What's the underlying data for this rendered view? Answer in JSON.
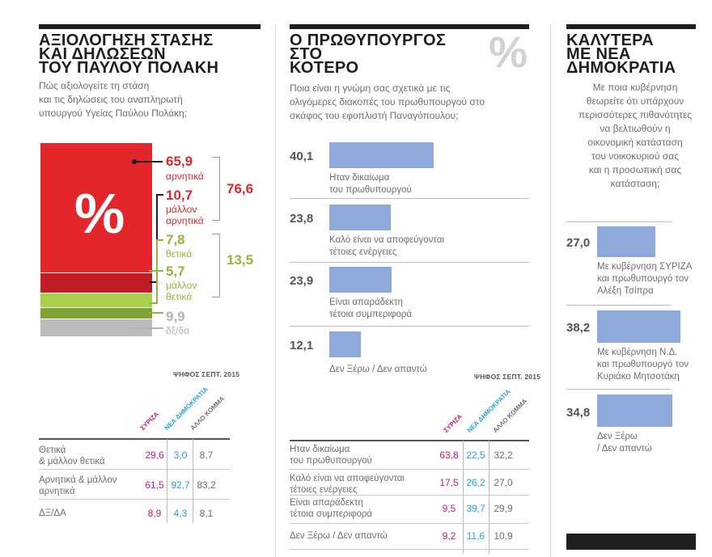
{
  "panel1": {
    "title": "ΑΞΙΟΛΟΓΗΣΗ ΣΤΑΣΗΣ\nΚΑΙ ΔΗΛΩΣΕΩΝ\nΤΟΥ ΠΑΥΛΟΥ ΠΟΛΑΚΗ",
    "subtitle": "Πώς αξιολογείτε τη στάση\nκαι τις δηλώσεις του αναπληρωτή\nυπουργού Υγείας Παύλου Πολάκη;",
    "percent_symbol": "%",
    "segments": [
      {
        "value": "65,9",
        "label": "αρνητικά",
        "color": "#e3262b"
      },
      {
        "value": "10,7",
        "label": "μάλλον\nαρνητικά",
        "color": "#c01e24"
      },
      {
        "value": "7,8",
        "label": "θετικά",
        "color": "#a9cf4d"
      },
      {
        "value": "5,7",
        "label": "μάλλον\nθετικά",
        "color": "#7fa436"
      },
      {
        "value": "9,9",
        "label": "δξ/δα",
        "color": "#bcbcbc"
      }
    ],
    "total_negative": "76,6",
    "total_positive": "13,5",
    "vote_label": "ΨΗΦΟΣ ΣΕΠΤ. 2015",
    "col_headers": [
      "ΣΥΡΙΖΑ",
      "ΝΕΑ ΔΗΜΟΚΡΑΤΙΑ",
      "ΑΛΛΟ ΚΟΜΜΑ"
    ],
    "rows": [
      {
        "label": "Θετικά\n& μάλλον θετικά",
        "v": [
          "29,6",
          "3,0",
          "8,7"
        ]
      },
      {
        "label": "Αρνητικά & μάλλον\nαρνητικά",
        "v": [
          "61,5",
          "92,7",
          "83,2"
        ]
      },
      {
        "label": "ΔΞ/ΔΑ",
        "v": [
          "8,9",
          "4,3",
          "8,1"
        ]
      }
    ]
  },
  "panel2": {
    "title": "Ο ΠΡΩΘΥΠΟΥΡΓΟΣ\nΣΤΟ\nΚΟΤΕΡΟ",
    "percent_symbol": "%",
    "subtitle": "Ποια είναι η γνώμη σας σχετικά με τις\nολιγόμερες διακοπές του πρωθυπουργού στο\nσκάφος του εφοπλιστή Παναγόπουλου;",
    "bars": [
      {
        "value": "40,1",
        "label": "Ηταν δικαίωμα\nτου πρωθυπουργού"
      },
      {
        "value": "23,8",
        "label": "Καλό είναι να αποφεύγονται\nτέτοιες ενέργειες"
      },
      {
        "value": "23,9",
        "label": "Είναι απαράδεκτη\nτέτοια συμπεριφορά"
      },
      {
        "value": "12,1",
        "label": "Δεν Ξέρω / Δεν απαντώ"
      }
    ],
    "vote_label": "ΨΗΦΟΣ ΣΕΠΤ. 2015",
    "col_headers": [
      "ΣΥΡΙΖΑ",
      "ΝΕΑ ΔΗΜΟΚΡΑΤΙΑ",
      "ΑΛΛΟ ΚΟΜΜΑ"
    ],
    "rows": [
      {
        "label": "Ηταν δικαίωμα\nτου πρωθυπουργού",
        "v": [
          "63,8",
          "22,5",
          "32,2"
        ]
      },
      {
        "label": "Καλό είναι να αποφεύγονται\nτέτοιες ενέργειες",
        "v": [
          "17,5",
          "26,2",
          "27,0"
        ]
      },
      {
        "label": "Είναι απαράδεκτη\nτέτοια συμπεριφορά",
        "v": [
          "9,5",
          "39,7",
          "29,9"
        ]
      },
      {
        "label": "Δεν Ξέρω / Δεν απαντώ",
        "v": [
          "9,2",
          "11,6",
          "10,9"
        ]
      }
    ]
  },
  "panel3": {
    "title": "ΚΑΛΥΤΕΡΑ\nΜΕ ΝΕΑ\nΔΗΜΟΚΡΑΤΙΑ",
    "subtitle": "Με ποια κυβέρνηση\nθεωρείτε ότι υπάρχουν\nπερισσότερες πιθανότητες\nνα βελτιωθούν η\nοικονομική κατάσταση\nτου νοικοκυριού σας\nκαι η προσωπική σας\nκατάσταση;",
    "bars": [
      {
        "value": "27,0",
        "label": "Με κυβέρνηση ΣΥΡΙΖΑ\nκαι πρωθυπουργό τον\nΑλέξη Τσίπρα"
      },
      {
        "value": "38,2",
        "label": "Με κυβέρνηση Ν.Δ.\nκαι πρωθυπουργό τον\nΚυριάκο Μητσοτάκη"
      },
      {
        "value": "34,8",
        "label": "Δεν Ξέρω\n/ Δεν απαντώ"
      }
    ]
  },
  "chart_data": [
    {
      "type": "bar",
      "title": "ΑΞΙΟΛΟΓΗΣΗ ΣΤΑΣΗΣ ΚΑΙ ΔΗΛΩΣΕΩΝ ΤΟΥ ΠΑΥΛΟΥ ΠΟΛΑΚΗ",
      "categories": [
        "αρνητικά",
        "μάλλον αρνητικά",
        "θετικά",
        "μάλλον θετικά",
        "δξ/δα"
      ],
      "values": [
        65.9,
        10.7,
        7.8,
        5.7,
        9.9
      ],
      "stacked": true
    },
    {
      "type": "bar",
      "title": "Ο ΠΡΩΘΥΠΟΥΡΓΟΣ ΣΤΟ ΚΟΤΕΡΟ",
      "categories": [
        "Ηταν δικαίωμα του πρωθυπουργού",
        "Καλό είναι να αποφεύγονται τέτοιες ενέργειες",
        "Είναι απαράδεκτη τέτοια συμπεριφορά",
        "Δεν Ξέρω / Δεν απαντώ"
      ],
      "values": [
        40.1,
        23.8,
        23.9,
        12.1
      ]
    },
    {
      "type": "bar",
      "title": "ΚΑΛΥΤΕΡΑ ΜΕ ΝΕΑ ΔΗΜΟΚΡΑΤΙΑ",
      "categories": [
        "Με κυβέρνηση ΣΥΡΙΖΑ και πρωθυπουργό τον Αλέξη Τσίπρα",
        "Με κυβέρνηση Ν.Δ. και πρωθυπουργό τον Κυριάκο Μητσοτάκη",
        "Δεν Ξέρω / Δεν απαντώ"
      ],
      "values": [
        27.0,
        38.2,
        34.8
      ]
    }
  ]
}
